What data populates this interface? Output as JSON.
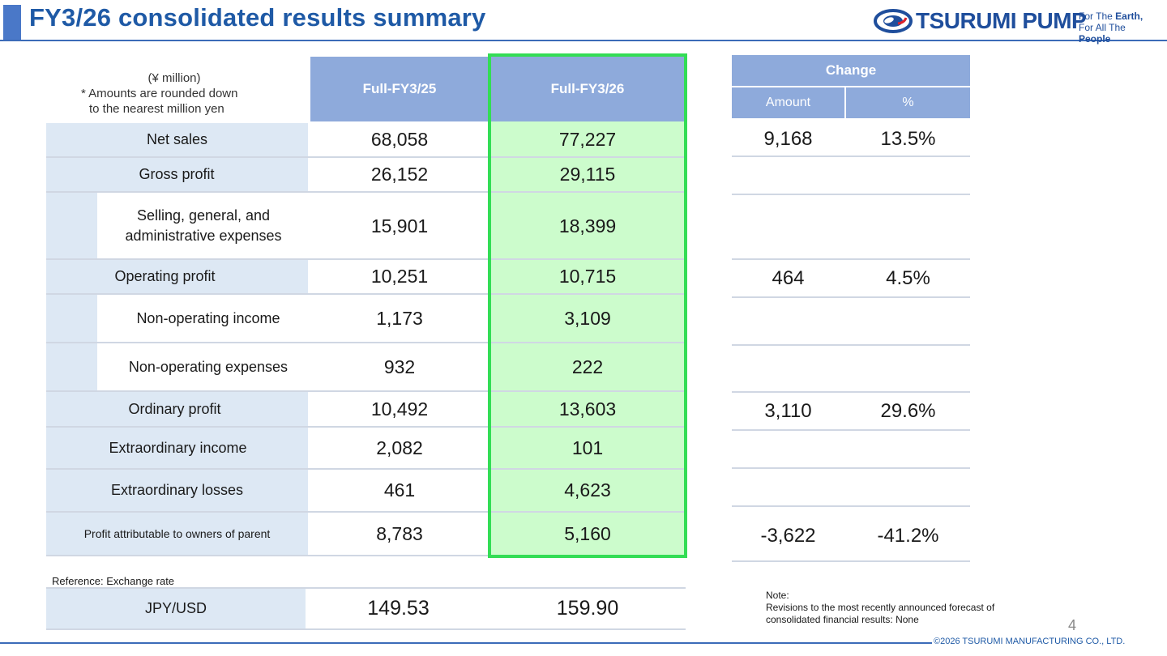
{
  "header": {
    "title": "FY3/26 consolidated results summary"
  },
  "logo": {
    "name": "TSURUMI PUMP",
    "tagline_1a": "For The ",
    "tagline_1b": "Earth,",
    "tagline_2a": "For All The ",
    "tagline_2b": "People"
  },
  "table": {
    "unit": "(¥ million)",
    "unit_note_1": "* Amounts are rounded down",
    "unit_note_2": "to the nearest million yen",
    "col_prev": "Full-FY3/25",
    "col_curr": "Full-FY3/26",
    "change_header": "Change",
    "change_amount": "Amount",
    "change_pct": "%",
    "rows": [
      {
        "label": "Net sales",
        "prev": "68,058",
        "curr": "77,227",
        "amount": "9,168",
        "pct": "13.5%"
      },
      {
        "label": "Gross profit",
        "prev": "26,152",
        "curr": "29,115",
        "amount": "",
        "pct": ""
      },
      {
        "label": "Selling, general, and administrative expenses",
        "prev": "15,901",
        "curr": "18,399",
        "amount": "",
        "pct": ""
      },
      {
        "label": "Operating profit",
        "prev": "10,251",
        "curr": "10,715",
        "amount": "464",
        "pct": "4.5%"
      },
      {
        "label": "Non-operating income",
        "prev": "1,173",
        "curr": "3,109",
        "amount": "",
        "pct": ""
      },
      {
        "label": "Non-operating expenses",
        "prev": "932",
        "curr": "222",
        "amount": "",
        "pct": ""
      },
      {
        "label": "Ordinary profit",
        "prev": "10,492",
        "curr": "13,603",
        "amount": "3,110",
        "pct": "29.6%"
      },
      {
        "label": "Extraordinary income",
        "prev": "2,082",
        "curr": "101",
        "amount": "",
        "pct": ""
      },
      {
        "label": "Extraordinary  losses",
        "prev": "461",
        "curr": "4,623",
        "amount": "",
        "pct": ""
      },
      {
        "label": "Profit attributable to owners of parent",
        "prev": "8,783",
        "curr": "5,160",
        "amount": "-3,622",
        "pct": "-41.2%"
      }
    ]
  },
  "reference": {
    "label": "Reference: Exchange rate",
    "row_label": "JPY/USD",
    "prev": "149.53",
    "curr": "159.90"
  },
  "note": {
    "line1": "Note:",
    "line2": "Revisions to the most recently announced forecast of",
    "line3": "consolidated financial results: None"
  },
  "footer": {
    "page": "4",
    "copyright": "©2026 TSURUMI MANUFACTURING CO., LTD."
  }
}
